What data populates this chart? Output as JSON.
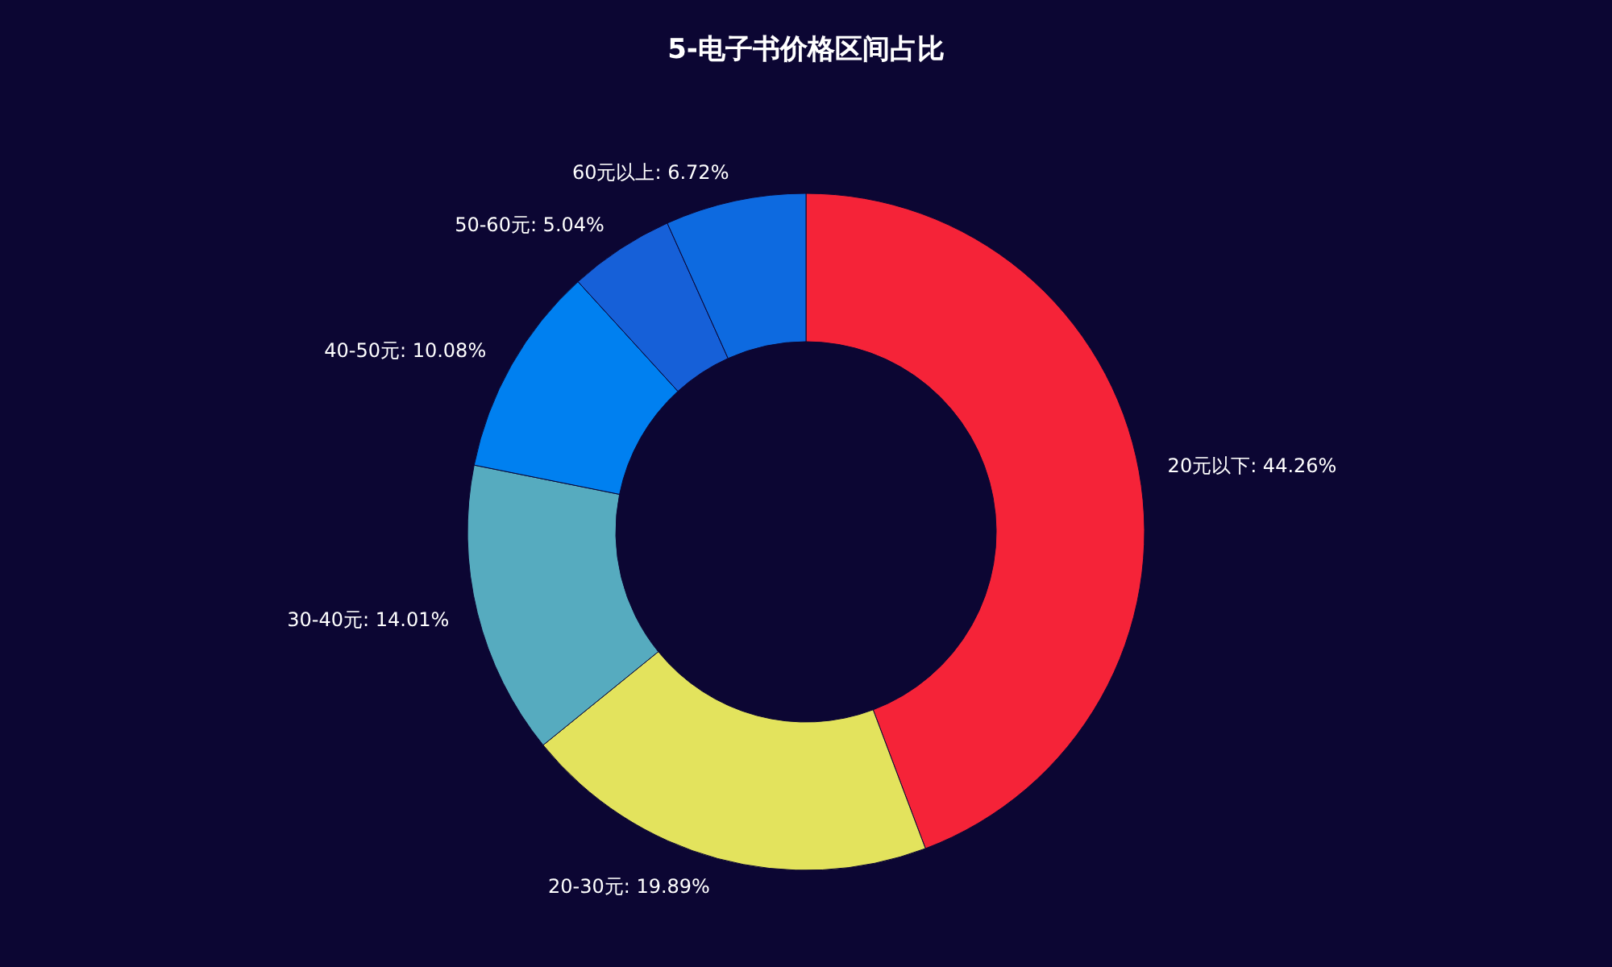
{
  "chart_data": {
    "type": "donut",
    "title": "5-电子书价格区间占比",
    "categories": [
      "20元以下",
      "20-30元",
      "30-40元",
      "40-50元",
      "50-60元",
      "60元以上"
    ],
    "values": [
      44.26,
      19.89,
      14.01,
      10.08,
      5.04,
      6.72
    ],
    "colors": [
      "#f52338",
      "#e3e35d",
      "#56abbf",
      "#0080f0",
      "#1660d8",
      "#0d6ae0"
    ],
    "value_labels": [
      "44.26%",
      "19.89%",
      "14.01%",
      "10.08%",
      "5.04%",
      "6.72%"
    ]
  }
}
